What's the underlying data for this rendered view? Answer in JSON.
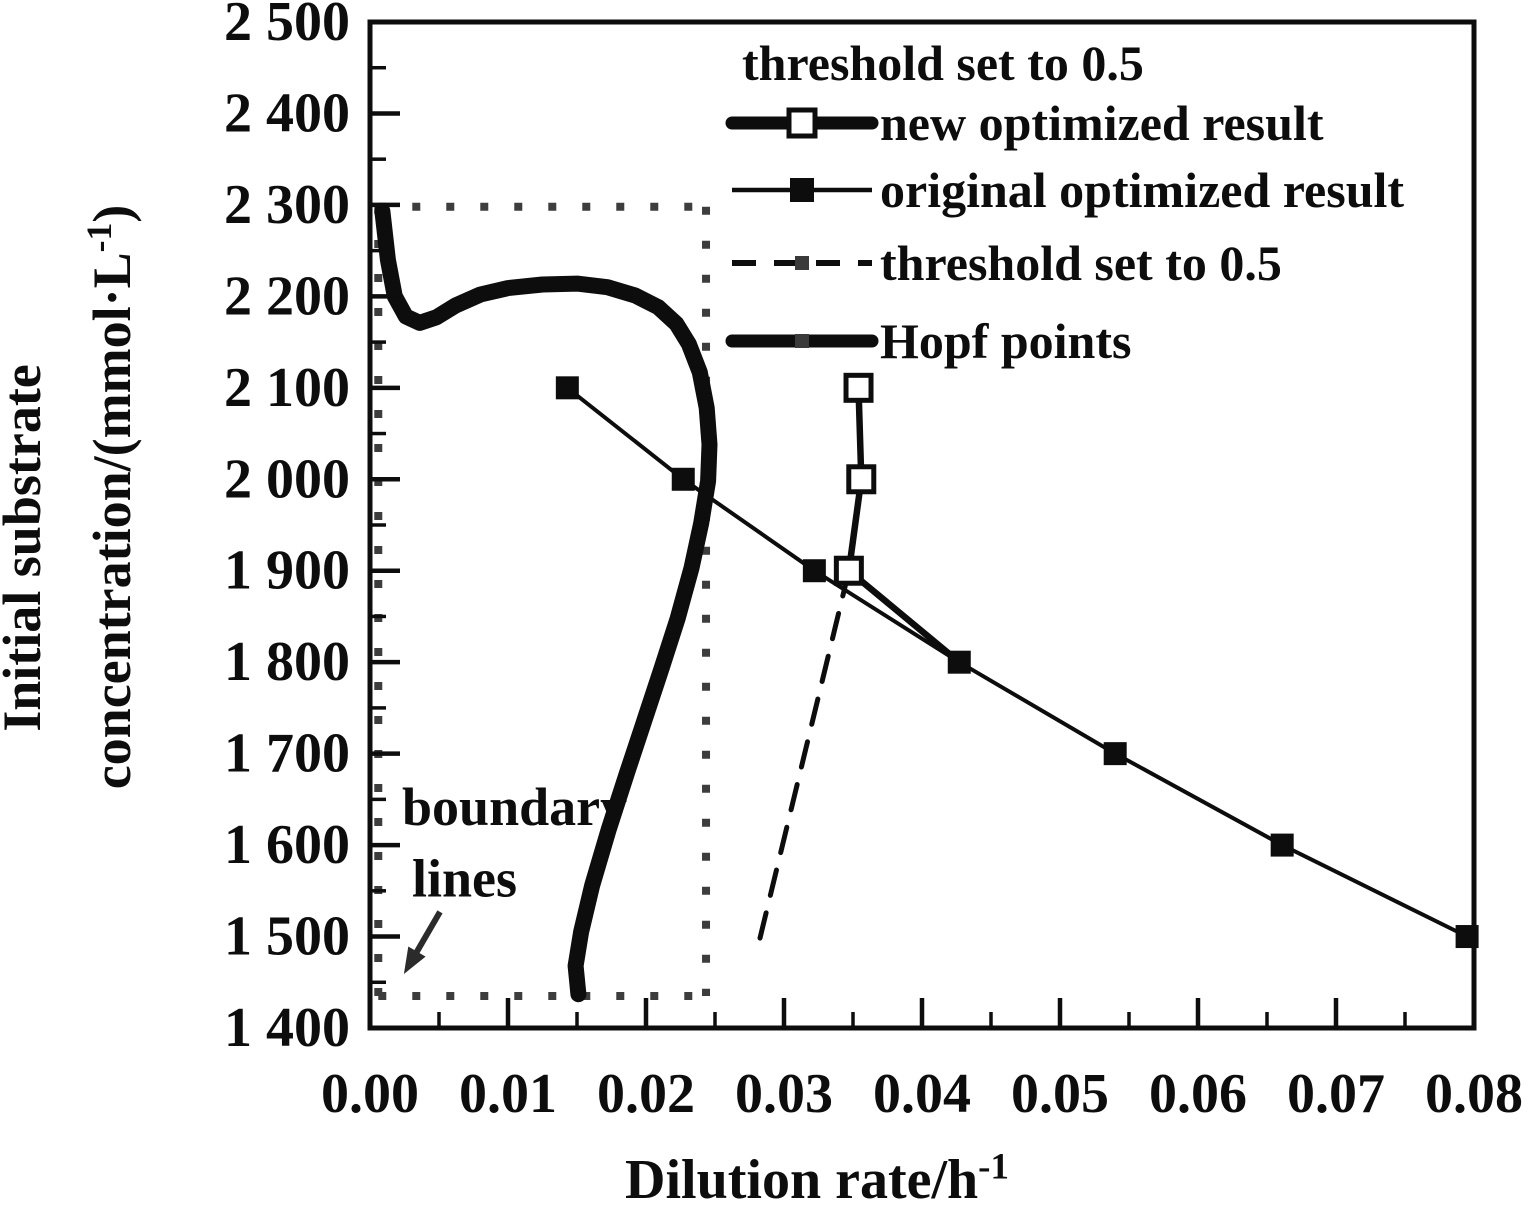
{
  "figure": {
    "background": "#ffffff",
    "ink_color": "#0d0d0d",
    "dotted_color": "#3d3d3d"
  },
  "chart_data": {
    "type": "line",
    "title": "",
    "xlabel": "Dilution rate/h^{-1}",
    "ylabel_line1": "Initial substrate",
    "ylabel_line2": "concentration/(mmol·L^{-1})",
    "xlim": [
      0,
      0.08
    ],
    "ylim": [
      1400,
      2500
    ],
    "grid": false,
    "legend_position": "top-right",
    "x_axis": {
      "minor_step": 0.005,
      "ticks": [
        {
          "value": 0.0,
          "label": "0.00"
        },
        {
          "value": 0.01,
          "label": "0.01"
        },
        {
          "value": 0.02,
          "label": "0.02"
        },
        {
          "value": 0.03,
          "label": "0.03"
        },
        {
          "value": 0.04,
          "label": "0.04"
        },
        {
          "value": 0.05,
          "label": "0.05"
        },
        {
          "value": 0.06,
          "label": "0.06"
        },
        {
          "value": 0.07,
          "label": "0.07"
        },
        {
          "value": 0.08,
          "label": "0.08"
        }
      ]
    },
    "y_axis": {
      "minor_step": 50,
      "ticks": [
        {
          "value": 2500,
          "label": "2 500"
        },
        {
          "value": 2400,
          "label": "2 400"
        },
        {
          "value": 2300,
          "label": "2 300"
        },
        {
          "value": 2200,
          "label": "2 200"
        },
        {
          "value": 2100,
          "label": "2 100"
        },
        {
          "value": 2000,
          "label": "2 000"
        },
        {
          "value": 1900,
          "label": "1 900"
        },
        {
          "value": 1800,
          "label": "1 800"
        },
        {
          "value": 1700,
          "label": "1 700"
        },
        {
          "value": 1600,
          "label": "1 600"
        },
        {
          "value": 1500,
          "label": "1 500"
        },
        {
          "value": 1400,
          "label": "1 400"
        }
      ]
    },
    "series": [
      {
        "key": "threshold",
        "name": "threshold set to 0.5",
        "line_width": 5,
        "dash": "26 18",
        "marker": "none",
        "marker_indices": [],
        "x": [
          0.0347,
          0.028
        ],
        "y": [
          1900,
          1482
        ]
      },
      {
        "key": "hopf",
        "name": "Hopf points",
        "line_width": 16,
        "dash": "",
        "marker": "none",
        "marker_indices": [],
        "x": [
          0.0009,
          0.0013,
          0.0018,
          0.0026,
          0.0036,
          0.0048,
          0.0062,
          0.008,
          0.01,
          0.0125,
          0.015,
          0.0172,
          0.0192,
          0.0209,
          0.0222,
          0.0231,
          0.0239,
          0.0244,
          0.0246,
          0.0245,
          0.024,
          0.0233,
          0.0223,
          0.0211,
          0.0199,
          0.0186,
          0.0173,
          0.0161,
          0.0153,
          0.0149,
          0.0151
        ],
        "y": [
          2293,
          2240,
          2200,
          2178,
          2171,
          2177,
          2190,
          2202,
          2209,
          2213,
          2214,
          2210,
          2201,
          2188,
          2170,
          2148,
          2117,
          2078,
          2038,
          1998,
          1952,
          1903,
          1848,
          1792,
          1737,
          1678,
          1617,
          1556,
          1505,
          1468,
          1437
        ]
      },
      {
        "key": "original",
        "name": "original optimized result",
        "line_width": 4,
        "dash": "",
        "marker": "filled-square",
        "marker_indices": [
          0,
          1,
          2,
          3,
          4,
          5,
          6
        ],
        "x": [
          0.0143,
          0.0227,
          0.0322,
          0.0427,
          0.054,
          0.0661,
          0.0795
        ],
        "y": [
          2100,
          2000,
          1900,
          1800,
          1700,
          1600,
          1500
        ]
      },
      {
        "key": "new",
        "name": "new optimized result",
        "line_width": 6.5,
        "dash": "",
        "marker": "open-square",
        "marker_indices": [
          0,
          1,
          2
        ],
        "x": [
          0.0354,
          0.0356,
          0.0347,
          0.0427
        ],
        "y": [
          2100,
          2000,
          1900,
          1800
        ]
      }
    ],
    "boundary_box": {
      "x0": 0.0006,
      "x1": 0.02435,
      "y0": 1435,
      "y1": 2298
    },
    "legend": {
      "title": "threshold set to 0.5",
      "entries": [
        {
          "label": "new optimized result",
          "sample": "thick-line",
          "marker": "open-square"
        },
        {
          "label": "original optimized result",
          "sample": "thin-line",
          "marker": "filled-square"
        },
        {
          "label": "threshold set to 0.5",
          "sample": "dashed-line",
          "marker": "small-square"
        },
        {
          "label": "Hopf points",
          "sample": "thick-line",
          "marker": "small-square"
        }
      ]
    },
    "annotations": {
      "boundary_label": {
        "lines": [
          "boundary",
          "lines"
        ],
        "x": [
          0.00232,
          0.00304
        ],
        "y": [
          1622,
          1544
        ]
      },
      "arrow": {
        "tail": {
          "x": 0.00507,
          "y": 1527
        },
        "tip": {
          "x": 0.00246,
          "y": 1459
        }
      }
    }
  }
}
